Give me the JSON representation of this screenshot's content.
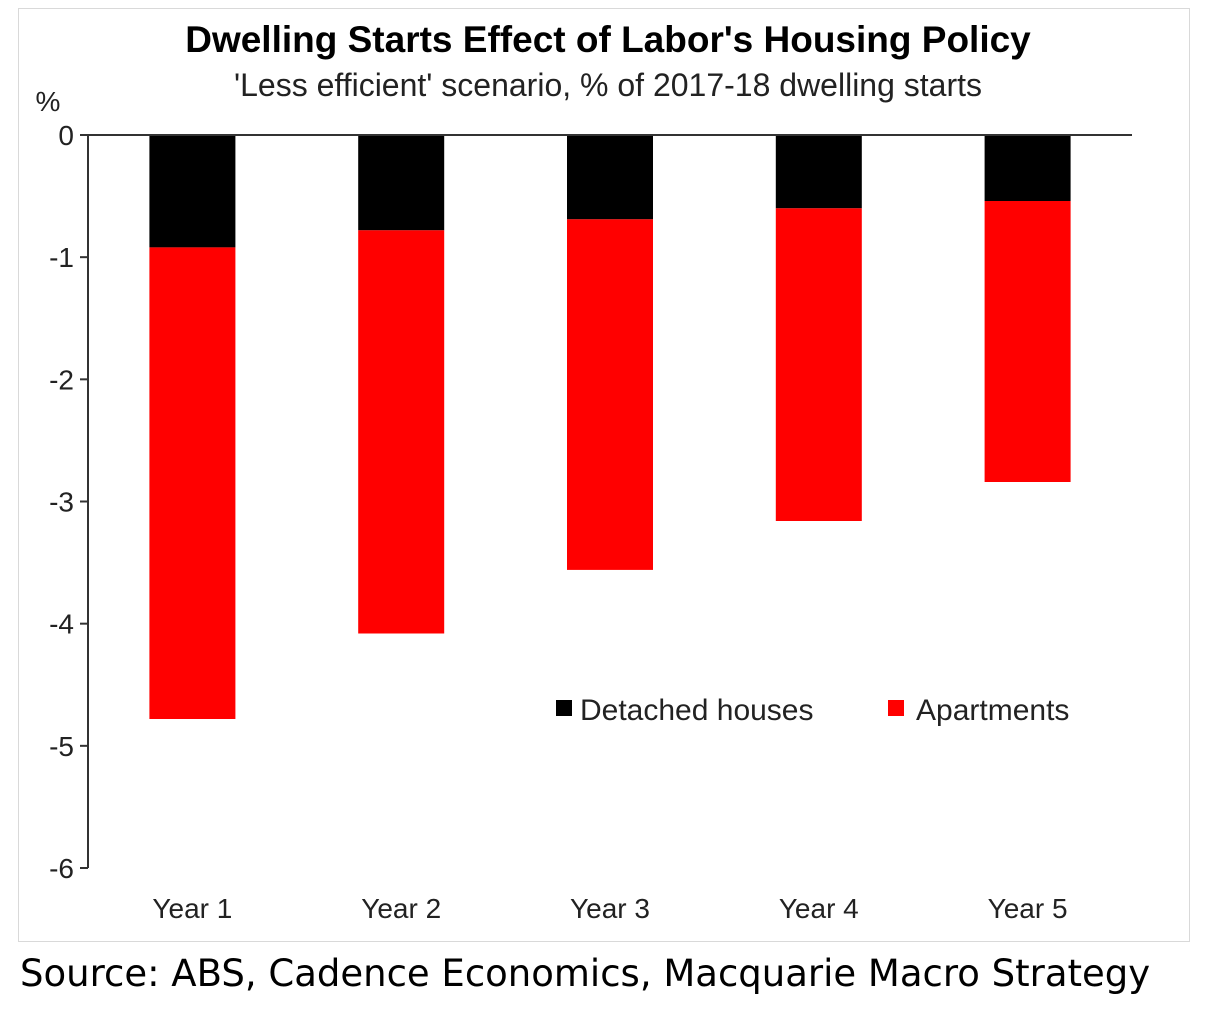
{
  "chart_data": {
    "type": "bar",
    "stacked": true,
    "title": "Dwelling Starts Effect of Labor's Housing Policy",
    "subtitle": "'Less efficient' scenario, % of 2017-18 dwelling starts",
    "ylabel": "%",
    "xlabel": "",
    "categories": [
      "Year 1",
      "Year 2",
      "Year 3",
      "Year 4",
      "Year 5"
    ],
    "series": [
      {
        "name": "Detached houses",
        "color": "#000000",
        "values": [
          -0.92,
          -0.78,
          -0.69,
          -0.6,
          -0.54
        ]
      },
      {
        "name": "Apartments",
        "color": "#ff0000",
        "values": [
          -3.86,
          -3.3,
          -2.87,
          -2.56,
          -2.3
        ]
      }
    ],
    "totals": [
      -4.78,
      -4.08,
      -3.56,
      -3.16,
      -2.84
    ],
    "ylim": [
      -6,
      0
    ],
    "yticks": [
      "0",
      "-1",
      "-2",
      "-3",
      "-4",
      "-5",
      "-6"
    ],
    "legend": "inside-lower-right",
    "grid": false
  },
  "source": "Source: ABS, Cadence Economics, Macquarie Macro Strategy"
}
